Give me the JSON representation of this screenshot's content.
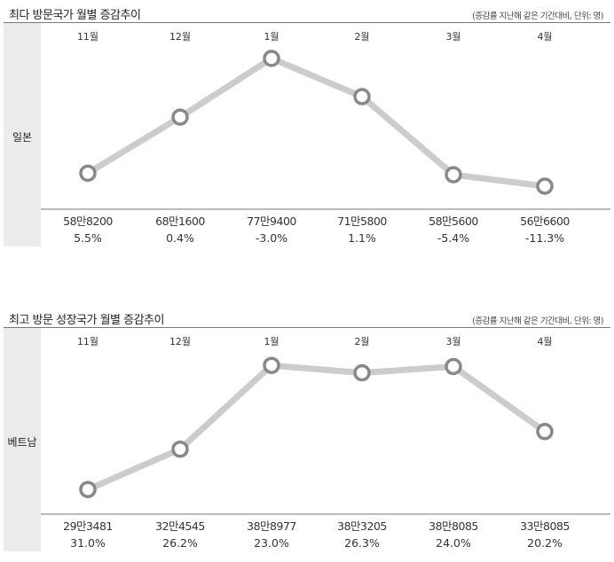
{
  "chart_data": [
    {
      "type": "line",
      "title": "최다 방문국가 월별 증감추이",
      "note": "(증감률 지난해 같은 기간대비, 단위: 명)",
      "country": "일본",
      "categories": [
        "11월",
        "12월",
        "1월",
        "2월",
        "3월",
        "4월"
      ],
      "values_label": [
        "58만8200",
        "68만1600",
        "77만9400",
        "71만5800",
        "58만5600",
        "56만6600"
      ],
      "values": [
        588200,
        681600,
        779400,
        715800,
        585600,
        566600
      ],
      "change_label": [
        "5.5%",
        "0.4%",
        "-3.0%",
        "1.1%",
        "-5.4%",
        "-11.3%"
      ],
      "ylim": [
        540000,
        800000
      ],
      "line_color": "#cccccc",
      "marker_color": "#888888"
    },
    {
      "type": "line",
      "title": "최고 방문 성장국가 월별 증감추이",
      "note": "(증감률 지난해 같은 기간대비, 단위: 명)",
      "country": "베트남",
      "categories": [
        "11월",
        "12월",
        "1월",
        "2월",
        "3월",
        "4월"
      ],
      "values_label": [
        "29만3481",
        "32만4545",
        "38만8977",
        "38만3205",
        "38만8085",
        "33만8085"
      ],
      "values": [
        293481,
        324545,
        388977,
        383205,
        388085,
        338085
      ],
      "change_label": [
        "31.0%",
        "26.2%",
        "23.0%",
        "26.3%",
        "24.0%",
        "20.2%"
      ],
      "ylim": [
        280000,
        400000
      ],
      "line_color": "#cccccc",
      "marker_color": "#888888"
    }
  ]
}
